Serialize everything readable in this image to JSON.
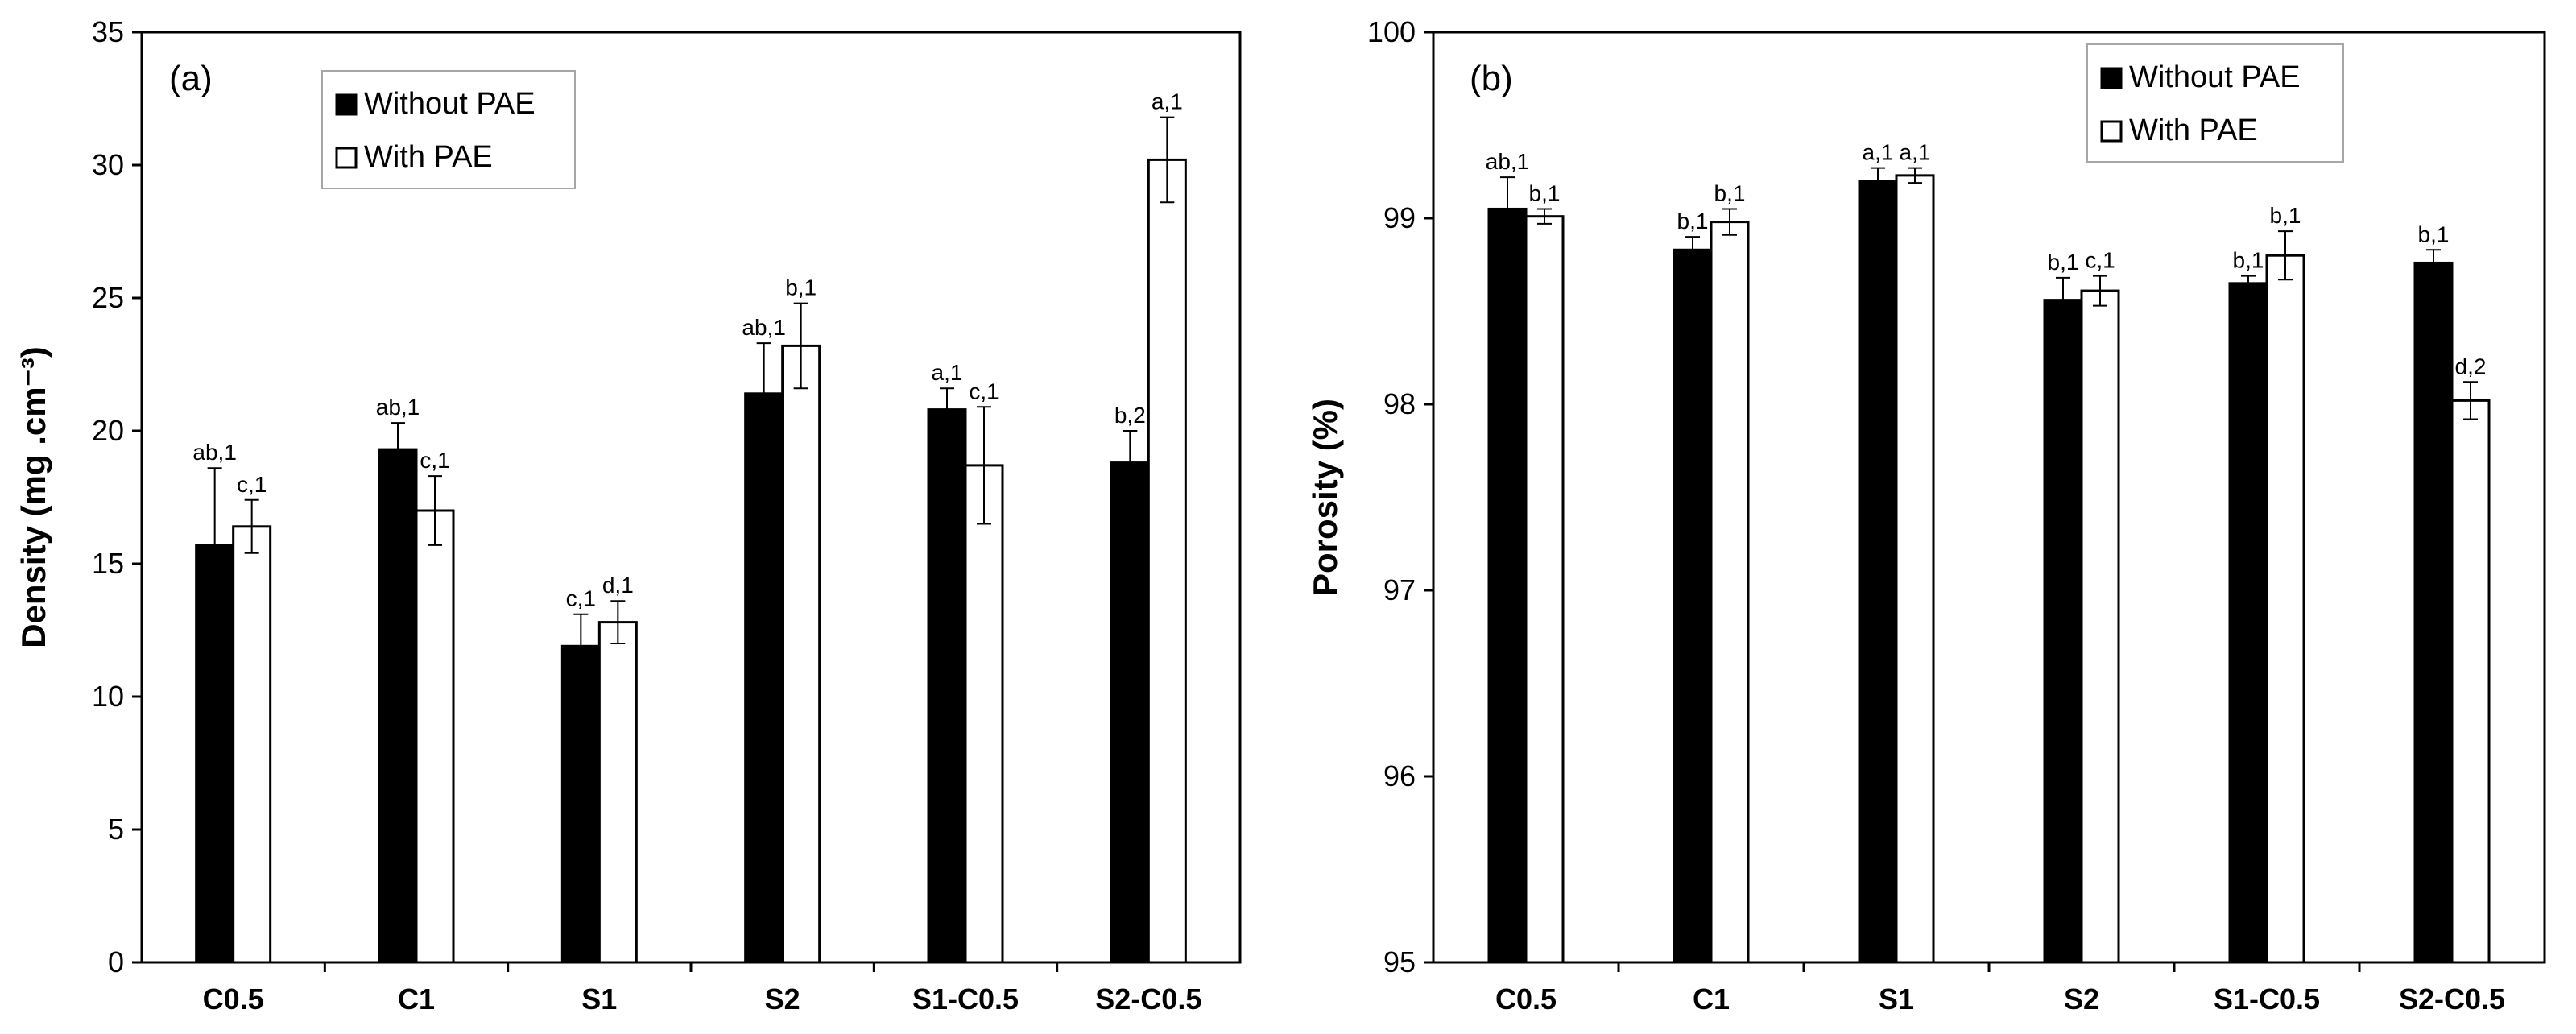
{
  "chart_data": [
    {
      "type": "bar",
      "panel": "(a)",
      "title": "",
      "xlabel": "",
      "ylabel": "Density (mg .cm⁻³)",
      "ylim": [
        0,
        35
      ],
      "y_ticks": [
        0,
        5,
        10,
        15,
        20,
        25,
        30,
        35
      ],
      "grid": false,
      "legend_position": "top-center",
      "categories": [
        "C0.5",
        "C1",
        "S1",
        "S2",
        "S1-C0.5",
        "S2-C0.5"
      ],
      "series": [
        {
          "name": "Without PAE",
          "color": "#000000",
          "values": [
            15.7,
            19.3,
            11.9,
            21.4,
            20.8,
            18.8
          ],
          "errors": [
            2.9,
            1.0,
            1.2,
            1.9,
            0.8,
            1.2
          ],
          "labels": [
            "ab,1",
            "ab,1",
            "c,1",
            "ab,1",
            "a,1",
            "b,2"
          ]
        },
        {
          "name": "With PAE",
          "color": "#ffffff",
          "values": [
            16.4,
            17.0,
            12.8,
            23.2,
            18.7,
            30.2
          ],
          "errors": [
            1.0,
            1.3,
            0.8,
            1.6,
            2.2,
            1.6
          ],
          "labels": [
            "c,1",
            "c,1",
            "d,1",
            "b,1",
            "c,1",
            "a,1"
          ]
        }
      ]
    },
    {
      "type": "bar",
      "panel": "(b)",
      "title": "",
      "xlabel": "",
      "ylabel": "Porosity (%)",
      "ylim": [
        95,
        100
      ],
      "y_ticks": [
        95,
        96,
        97,
        98,
        99,
        100
      ],
      "grid": false,
      "legend_position": "top-right",
      "categories": [
        "C0.5",
        "C1",
        "S1",
        "S2",
        "S1-C0.5",
        "S2-C0.5"
      ],
      "series": [
        {
          "name": "Without PAE",
          "color": "#000000",
          "values": [
            99.05,
            98.83,
            99.2,
            98.56,
            98.65,
            98.76
          ],
          "errors": [
            0.17,
            0.07,
            0.07,
            0.12,
            0.04,
            0.07
          ],
          "labels": [
            "ab,1",
            "b,1",
            "a,1",
            "b,1",
            "b,1",
            "b,1"
          ]
        },
        {
          "name": "With PAE",
          "color": "#ffffff",
          "values": [
            99.01,
            98.98,
            99.23,
            98.61,
            98.8,
            98.02
          ],
          "errors": [
            0.04,
            0.07,
            0.04,
            0.08,
            0.13,
            0.1
          ],
          "labels": [
            "b,1",
            "b,1",
            "a,1",
            "c,1",
            "b,1",
            "d,2"
          ]
        }
      ]
    }
  ]
}
